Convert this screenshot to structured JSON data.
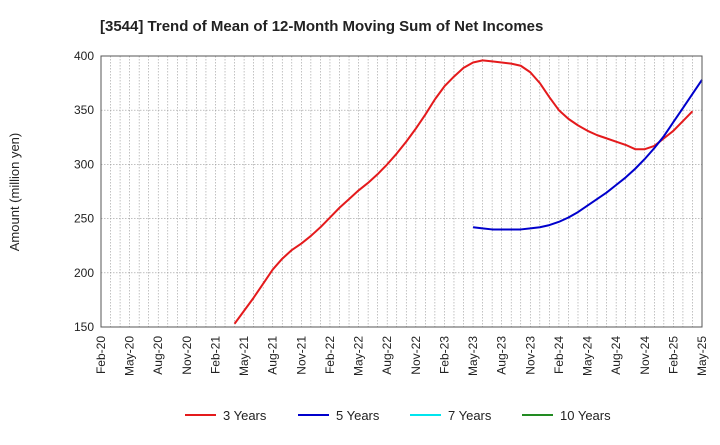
{
  "chart_data": {
    "type": "line",
    "title": "[3544]  Trend of Mean of 12-Month Moving Sum of Net Incomes",
    "xlabel": "",
    "ylabel": "Amount (million yen)",
    "ylim": [
      150,
      400
    ],
    "yticks": [
      150,
      200,
      250,
      300,
      350,
      400
    ],
    "xlim": [
      "2020-02",
      "2025-05"
    ],
    "xticks": [
      "Feb-20",
      "May-20",
      "Aug-20",
      "Nov-20",
      "Feb-21",
      "May-21",
      "Aug-21",
      "Nov-21",
      "Feb-22",
      "May-22",
      "Aug-22",
      "Nov-22",
      "Feb-23",
      "May-23",
      "Aug-23",
      "Nov-23",
      "Feb-24",
      "May-24",
      "Aug-24",
      "Nov-24",
      "Feb-25",
      "May-25"
    ],
    "grid": true,
    "legend_position": "bottom",
    "series": [
      {
        "name": "3 Years",
        "color": "#e41a1c",
        "points": [
          [
            "2021-04",
            153
          ],
          [
            "2021-05",
            165
          ],
          [
            "2021-06",
            177
          ],
          [
            "2021-07",
            190
          ],
          [
            "2021-08",
            203
          ],
          [
            "2021-09",
            213
          ],
          [
            "2021-10",
            221
          ],
          [
            "2021-11",
            227
          ],
          [
            "2021-12",
            234
          ],
          [
            "2022-01",
            242
          ],
          [
            "2022-02",
            251
          ],
          [
            "2022-03",
            260
          ],
          [
            "2022-04",
            268
          ],
          [
            "2022-05",
            276
          ],
          [
            "2022-06",
            283
          ],
          [
            "2022-07",
            291
          ],
          [
            "2022-08",
            300
          ],
          [
            "2022-09",
            310
          ],
          [
            "2022-10",
            321
          ],
          [
            "2022-11",
            333
          ],
          [
            "2022-12",
            346
          ],
          [
            "2023-01",
            360
          ],
          [
            "2023-02",
            372
          ],
          [
            "2023-03",
            381
          ],
          [
            "2023-04",
            389
          ],
          [
            "2023-05",
            394
          ],
          [
            "2023-06",
            396
          ],
          [
            "2023-07",
            395
          ],
          [
            "2023-08",
            394
          ],
          [
            "2023-09",
            393
          ],
          [
            "2023-10",
            391
          ],
          [
            "2023-11",
            385
          ],
          [
            "2023-12",
            375
          ],
          [
            "2024-01",
            362
          ],
          [
            "2024-02",
            350
          ],
          [
            "2024-03",
            342
          ],
          [
            "2024-04",
            336
          ],
          [
            "2024-05",
            331
          ],
          [
            "2024-06",
            327
          ],
          [
            "2024-07",
            324
          ],
          [
            "2024-08",
            321
          ],
          [
            "2024-09",
            318
          ],
          [
            "2024-10",
            314
          ],
          [
            "2024-11",
            314
          ],
          [
            "2024-12",
            317
          ],
          [
            "2025-01",
            324
          ],
          [
            "2025-02",
            331
          ],
          [
            "2025-03",
            340
          ],
          [
            "2025-04",
            349
          ]
        ]
      },
      {
        "name": "5 Years",
        "color": "#0000cc",
        "points": [
          [
            "2023-05",
            242
          ],
          [
            "2023-06",
            241
          ],
          [
            "2023-07",
            240
          ],
          [
            "2023-08",
            240
          ],
          [
            "2023-09",
            240
          ],
          [
            "2023-10",
            240
          ],
          [
            "2023-11",
            241
          ],
          [
            "2023-12",
            242
          ],
          [
            "2024-01",
            244
          ],
          [
            "2024-02",
            247
          ],
          [
            "2024-03",
            251
          ],
          [
            "2024-04",
            256
          ],
          [
            "2024-05",
            262
          ],
          [
            "2024-06",
            268
          ],
          [
            "2024-07",
            274
          ],
          [
            "2024-08",
            281
          ],
          [
            "2024-09",
            288
          ],
          [
            "2024-10",
            296
          ],
          [
            "2024-11",
            305
          ],
          [
            "2024-12",
            315
          ],
          [
            "2025-01",
            326
          ],
          [
            "2025-02",
            339
          ],
          [
            "2025-03",
            352
          ],
          [
            "2025-04",
            365
          ],
          [
            "2025-05",
            378
          ]
        ]
      },
      {
        "name": "7 Years",
        "color": "#00e5ee",
        "points": []
      },
      {
        "name": "10 Years",
        "color": "#228b22",
        "points": []
      }
    ]
  }
}
